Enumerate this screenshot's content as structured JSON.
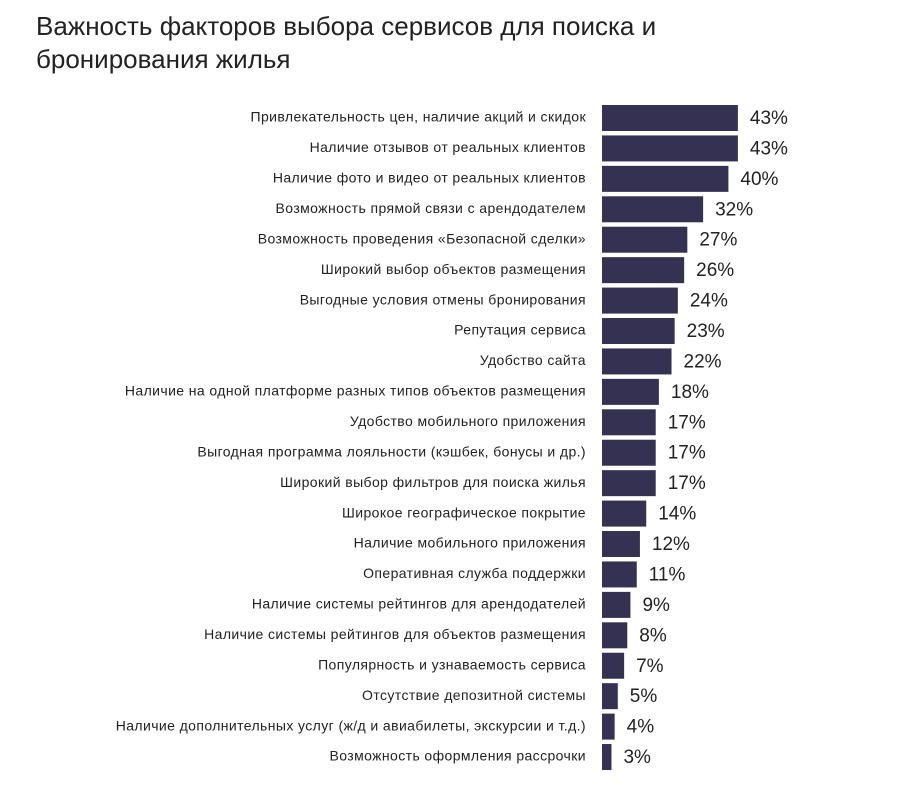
{
  "chart_data": {
    "type": "bar",
    "orientation": "horizontal",
    "title": "Важность факторов выбора сервисов для поиска и бронирования жилья",
    "color": "#353152",
    "categories": [
      "Привлекательность цен, наличие акций и скидок",
      "Наличие отзывов от реальных клиентов",
      "Наличие фото и видео от реальных клиентов",
      "Возможность прямой связи с арендодателем",
      "Возможность проведения «Безопасной сделки»",
      "Широкий выбор объектов размещения",
      "Выгодные условия отмены бронирования",
      "Репутация сервиса",
      "Удобство сайта",
      "Наличие на одной платформе разных типов объектов размещения",
      "Удобство мобильного приложения",
      "Выгодная программа лояльности (кэшбек, бонусы и др.)",
      "Широкий выбор фильтров для поиска жилья",
      "Широкое географическое покрытие",
      "Наличие мобильного приложения",
      "Оперативная служба поддержки",
      "Наличие системы рейтингов для арендодателей",
      "Наличие системы рейтингов для объектов размещения",
      "Популярность и узнаваемость сервиса",
      "Отсутствие депозитной системы",
      "Наличие дополнительных услуг (ж/д и авиабилеты, экскурсии и т.д.)",
      "Возможность оформления рассрочки"
    ],
    "values": [
      43,
      43,
      40,
      32,
      27,
      26,
      24,
      23,
      22,
      18,
      17,
      17,
      17,
      14,
      12,
      11,
      9,
      8,
      7,
      5,
      4,
      3
    ],
    "value_labels": [
      "43%",
      "43%",
      "40%",
      "32%",
      "27%",
      "26%",
      "24%",
      "23%",
      "22%",
      "18%",
      "17%",
      "17%",
      "17%",
      "14%",
      "12%",
      "11%",
      "9%",
      "8%",
      "7%",
      "5%",
      "4%",
      "3%"
    ]
  }
}
